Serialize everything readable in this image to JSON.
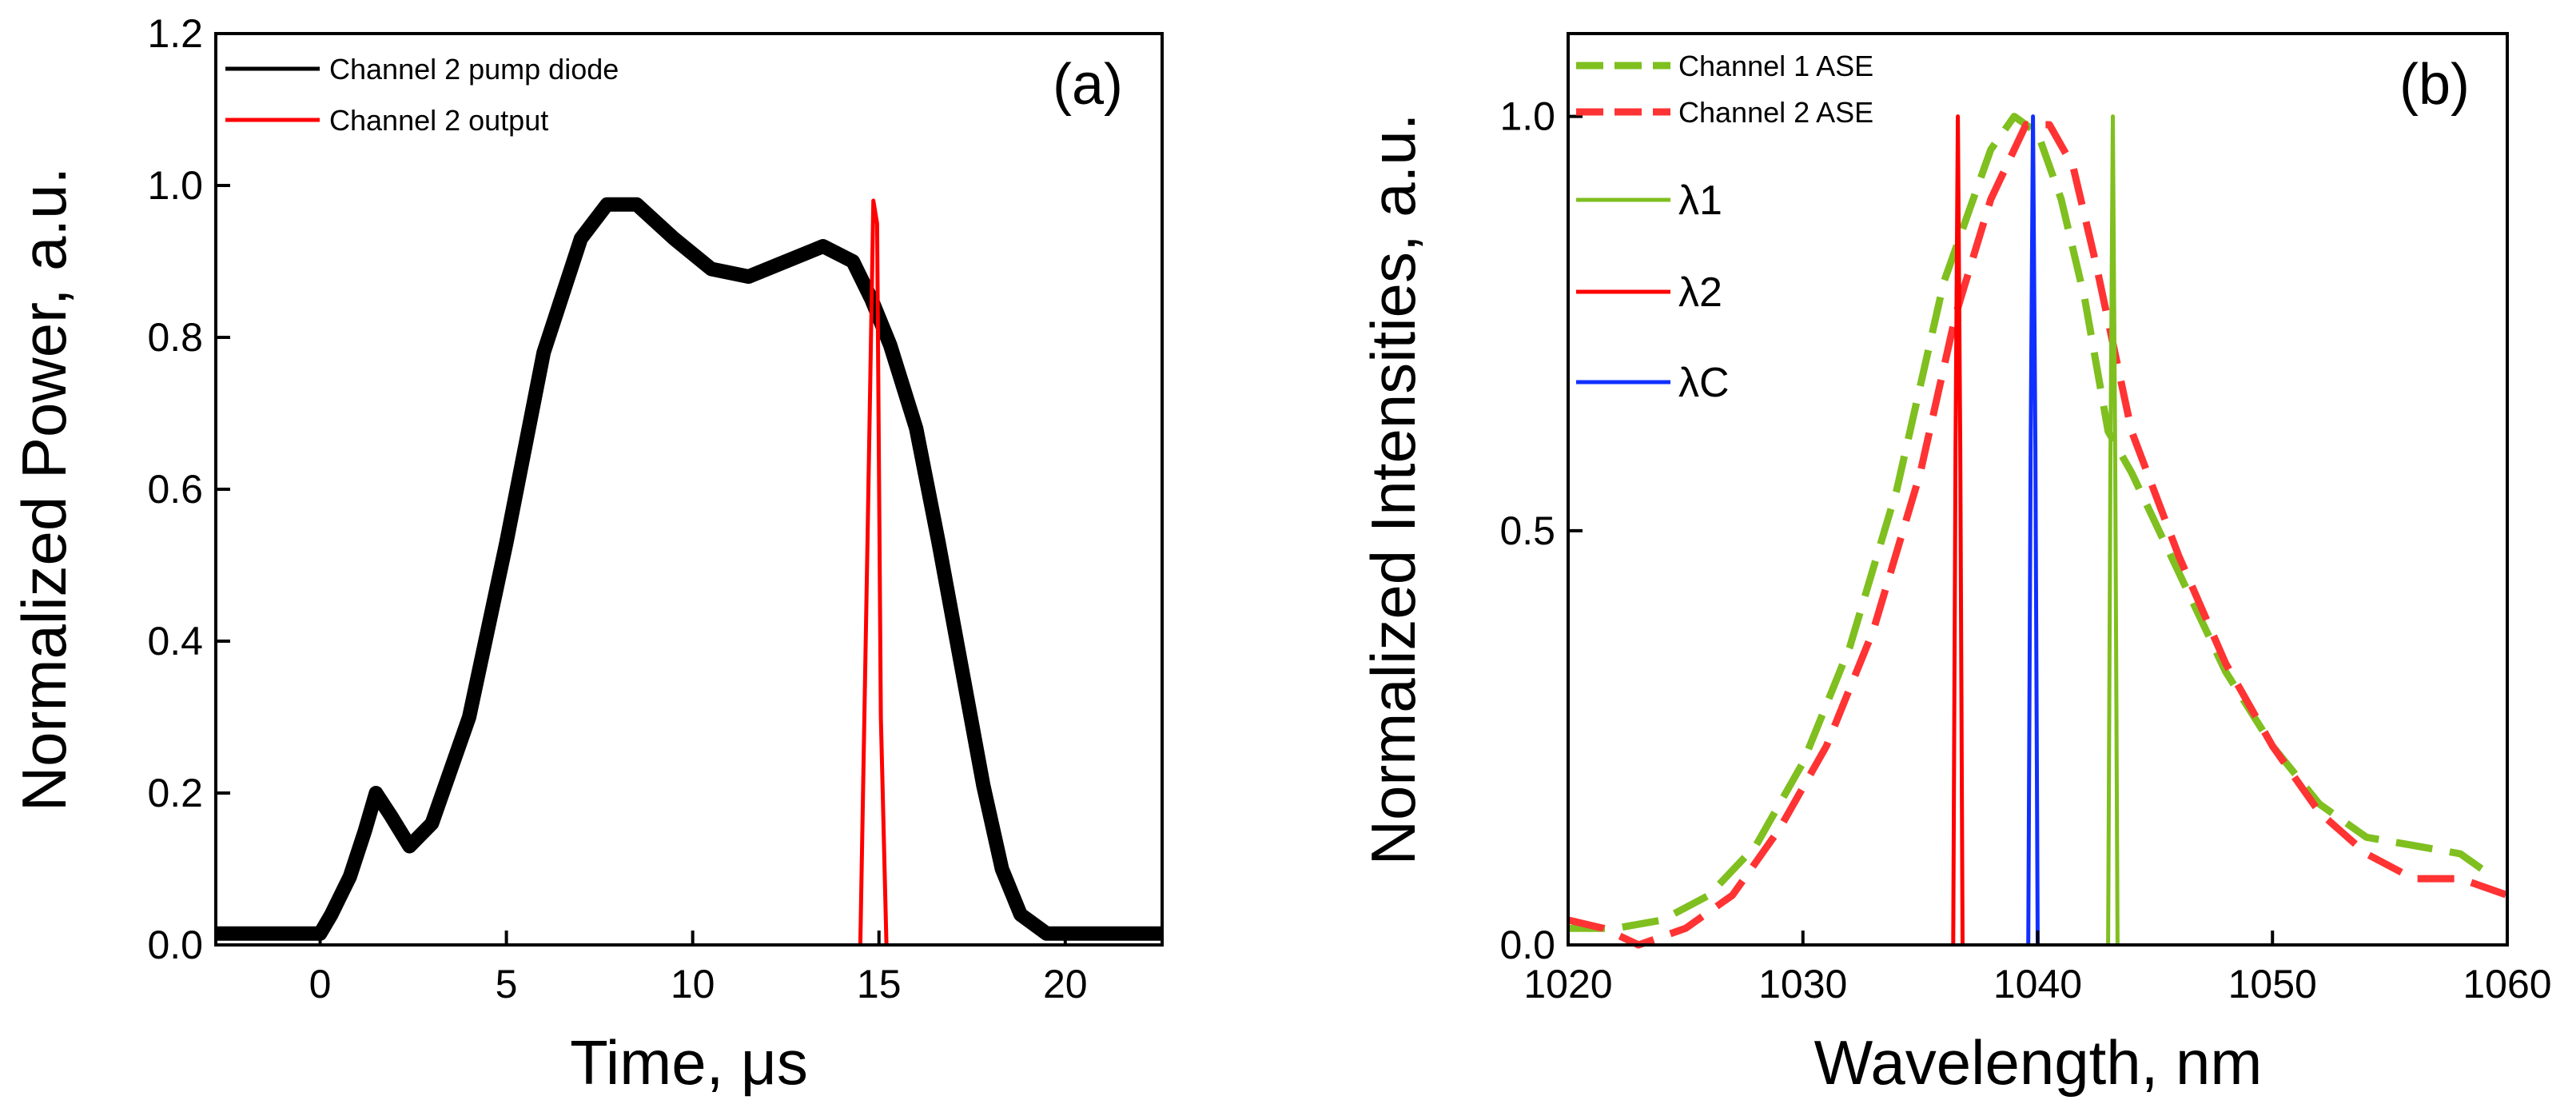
{
  "chart_data": [
    {
      "id": "a",
      "type": "line",
      "panel_label": "(a)",
      "xlabel": "Time, μs",
      "ylabel": "Normalized Power, a.u.",
      "xlim": [
        -2.8,
        22.6
      ],
      "ylim": [
        0,
        1.2
      ],
      "xticks": [
        0,
        5,
        10,
        15,
        20
      ],
      "xtick_labels": [
        "0",
        "5",
        "10",
        "15",
        "20"
      ],
      "yticks": [
        0,
        0.2,
        0.4,
        0.6,
        0.8,
        1.0,
        1.2
      ],
      "ytick_labels": [
        "0.0",
        "0.2",
        "0.4",
        "0.6",
        "0.8",
        "1.0",
        "1.2"
      ],
      "legend_position": "top-left",
      "series": [
        {
          "name": "Channel 2 pump diode",
          "color": "#000000",
          "style": "solid-thick",
          "x": [
            -2.8,
            0,
            0.3,
            0.8,
            1.2,
            1.5,
            1.9,
            2.4,
            3.0,
            4.0,
            5.0,
            6.0,
            7.0,
            7.7,
            8.5,
            9.5,
            10.5,
            11.5,
            12.5,
            13.5,
            14.3,
            14.8,
            15.3,
            16.0,
            16.6,
            17.2,
            17.8,
            18.3,
            18.8,
            19.5,
            20.5,
            22.6
          ],
          "y": [
            0.015,
            0.015,
            0.04,
            0.09,
            0.15,
            0.2,
            0.17,
            0.13,
            0.16,
            0.3,
            0.53,
            0.78,
            0.93,
            0.975,
            0.975,
            0.93,
            0.89,
            0.88,
            0.9,
            0.92,
            0.9,
            0.85,
            0.79,
            0.68,
            0.53,
            0.37,
            0.21,
            0.1,
            0.04,
            0.015,
            0.015,
            0.015
          ]
        },
        {
          "name": "Channel 2 output",
          "color": "#ff0000",
          "style": "solid",
          "x": [
            14.5,
            14.7,
            14.85,
            14.95,
            15.05,
            15.2
          ],
          "y": [
            0.0,
            0.55,
            0.98,
            0.95,
            0.3,
            0.0
          ]
        }
      ]
    },
    {
      "id": "b",
      "type": "line",
      "panel_label": "(b)",
      "xlabel": "Wavelength, nm",
      "ylabel": "Normalized Intensities, a.u.",
      "xlim": [
        1020,
        1060
      ],
      "ylim": [
        0,
        1.1
      ],
      "xticks": [
        1020,
        1030,
        1040,
        1050,
        1060
      ],
      "xtick_labels": [
        "1020",
        "1030",
        "1040",
        "1050",
        "1060"
      ],
      "yticks": [
        0,
        0.5,
        1.0
      ],
      "ytick_labels": [
        "0.0",
        "0.5",
        "1.0"
      ],
      "legend_position": "top-left",
      "series": [
        {
          "name": "Channel 1 ASE",
          "color": "#7fbf1f",
          "style": "dashed",
          "x": [
            1020,
            1022,
            1024,
            1026,
            1028,
            1030,
            1032,
            1034,
            1036,
            1038,
            1039,
            1040,
            1041,
            1042,
            1043,
            1044,
            1046,
            1048,
            1050,
            1052,
            1054,
            1056,
            1058,
            1059.5
          ],
          "y": [
            0.02,
            0.02,
            0.03,
            0.06,
            0.12,
            0.22,
            0.36,
            0.55,
            0.8,
            0.96,
            1.0,
            0.98,
            0.9,
            0.78,
            0.62,
            0.57,
            0.45,
            0.33,
            0.24,
            0.17,
            0.13,
            0.12,
            0.11,
            0.08
          ]
        },
        {
          "name": "Channel 2 ASE",
          "color": "#ff3333",
          "style": "dashed",
          "x": [
            1020,
            1021.5,
            1023,
            1025,
            1027,
            1029,
            1031,
            1033,
            1035,
            1036.5,
            1038,
            1039.5,
            1040.5,
            1041.5,
            1042.5,
            1044,
            1046,
            1048,
            1050,
            1052,
            1054,
            1056,
            1058,
            1060
          ],
          "y": [
            0.03,
            0.02,
            0.0,
            0.02,
            0.06,
            0.14,
            0.24,
            0.38,
            0.57,
            0.76,
            0.9,
            0.99,
            0.99,
            0.94,
            0.82,
            0.62,
            0.47,
            0.34,
            0.24,
            0.16,
            0.11,
            0.08,
            0.08,
            0.06
          ]
        },
        {
          "name": "λ1",
          "color": "#7fbf1f",
          "style": "solid",
          "x": [
            1043.0,
            1043.1,
            1043.2,
            1043.3,
            1043.4
          ],
          "y": [
            0.0,
            0.6,
            1.0,
            0.6,
            0.0
          ]
        },
        {
          "name": "λ2",
          "color": "#ff0000",
          "style": "solid",
          "x": [
            1036.4,
            1036.5,
            1036.6,
            1036.7,
            1036.8
          ],
          "y": [
            0.0,
            0.6,
            1.0,
            0.6,
            0.0
          ]
        },
        {
          "name": "λC",
          "color": "#1030ff",
          "style": "solid",
          "x": [
            1039.6,
            1039.7,
            1039.8,
            1039.9,
            1040.0
          ],
          "y": [
            0.0,
            0.6,
            1.0,
            0.6,
            0.0
          ]
        }
      ]
    }
  ]
}
